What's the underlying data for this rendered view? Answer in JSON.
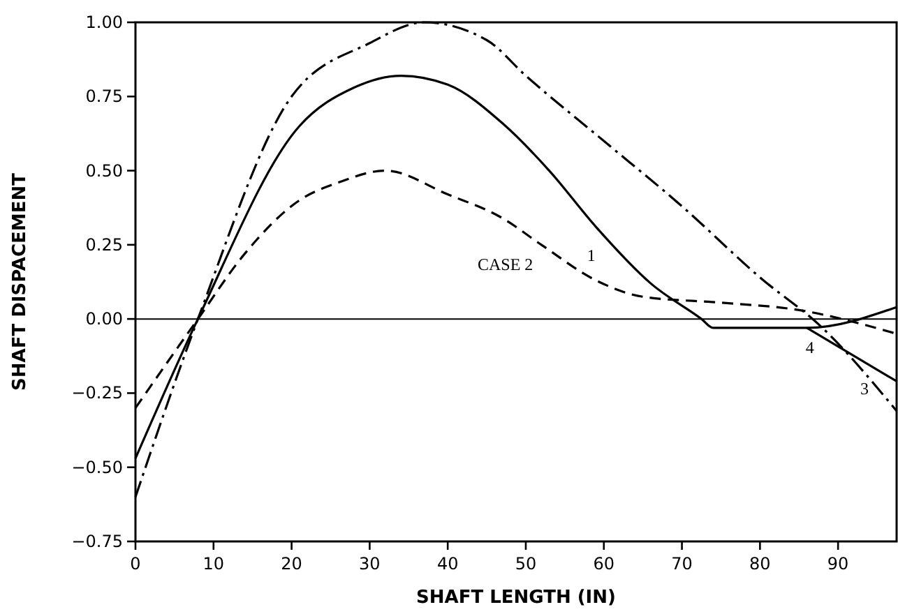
{
  "chart_data": {
    "type": "line",
    "xlabel": "SHAFT LENGTH  (IN)",
    "ylabel": "SHAFT DISPACEMENT",
    "xlim": [
      0,
      97.5
    ],
    "ylim": [
      -0.75,
      1
    ],
    "xticks": [
      0,
      10,
      20,
      30,
      40,
      50,
      60,
      70,
      80,
      90
    ],
    "yticks": [
      {
        "value": -0.75,
        "label": "−0.75"
      },
      {
        "value": -0.5,
        "label": "−0.50"
      },
      {
        "value": -0.25,
        "label": "−0.25"
      },
      {
        "value": 0,
        "label": "0.00"
      },
      {
        "value": 0.25,
        "label": "0.25"
      },
      {
        "value": 0.5,
        "label": "0.50"
      },
      {
        "value": 0.75,
        "label": "0.75"
      },
      {
        "value": 1,
        "label": "1.00"
      }
    ],
    "grid": false,
    "marker": "none",
    "ref_lines": [
      {
        "axis": "y",
        "value": 0,
        "color": "#000000"
      }
    ],
    "annotations": [
      {
        "text": "CASE 2",
        "x": 52,
        "y": 0.25
      },
      {
        "text": "1",
        "x": 60,
        "y": 0.28
      },
      {
        "text": "3",
        "x": 95,
        "y": -0.17
      },
      {
        "text": "4",
        "x": 88,
        "y": -0.03
      }
    ],
    "series": [
      {
        "color": "#000000",
        "line_style": "solid",
        "x": [
          0,
          8,
          21,
          28,
          34,
          40,
          47,
          53,
          59,
          66,
          72.5,
          74,
          86,
          97.5
        ],
        "values": [
          -0.47,
          0,
          0.65,
          0.78,
          0.82,
          0.79,
          0.66,
          0.5,
          0.31,
          0.12,
          0,
          -0.03,
          -0.03,
          0.04
        ]
      },
      {
        "color": "#000000",
        "line_style": "dashed",
        "x": [
          0,
          8,
          14,
          21,
          26,
          32,
          40,
          47,
          52,
          59,
          65,
          75,
          85,
          97.5
        ],
        "values": [
          -0.3,
          0,
          0.22,
          0.4,
          0.46,
          0.5,
          0.42,
          0.34,
          0.25,
          0.13,
          0.075,
          0.055,
          0.03,
          -0.05
        ]
      },
      {
        "color": "#000000",
        "line_style": "dashdot",
        "x": [
          0,
          8,
          20,
          30,
          37,
          45,
          50,
          60,
          70,
          80,
          88,
          97.5
        ],
        "values": [
          -0.6,
          0,
          0.75,
          0.93,
          1,
          0.94,
          0.82,
          0.6,
          0.38,
          0.14,
          -0.03,
          -0.31
        ]
      },
      {
        "color": "#000000",
        "line_style": "solid",
        "x": [
          86,
          97.5
        ],
        "values": [
          -0.03,
          -0.21
        ]
      }
    ]
  }
}
